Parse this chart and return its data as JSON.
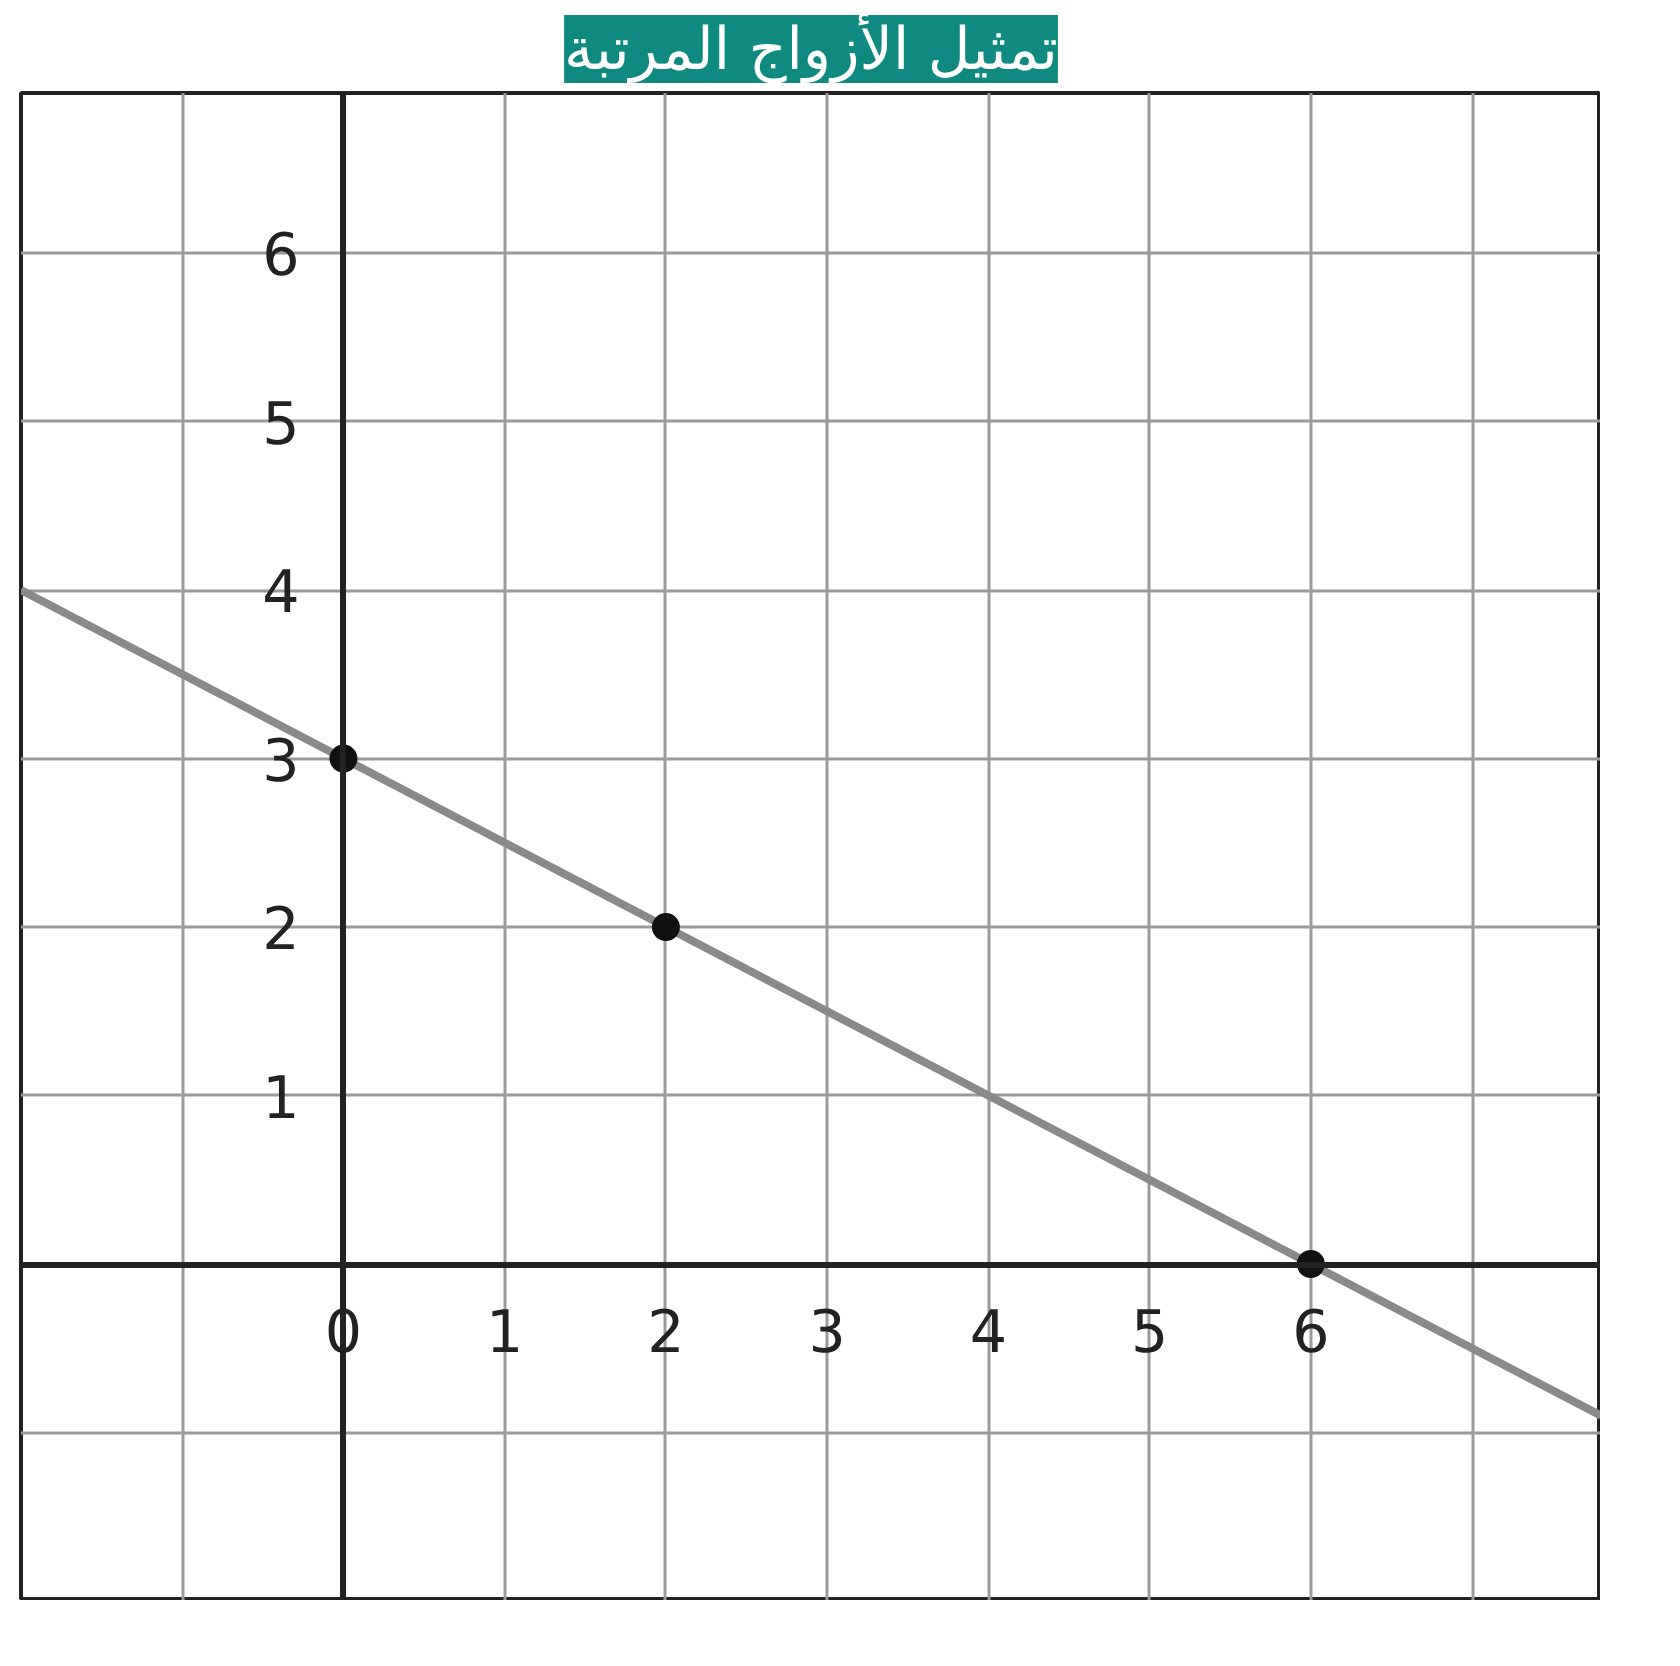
{
  "chart_data": {
    "type": "line",
    "title": "تمثيل الأزواج المرتبة",
    "series": [
      {
        "color": "#8a8a8a",
        "x": [
          -2,
          7.8
        ],
        "values": [
          4,
          -0.9
        ]
      },
      {
        "type": "scatter",
        "color": "#111111",
        "x": [
          0,
          2,
          6
        ],
        "values": [
          3,
          2,
          0
        ],
        "marker": "circle"
      }
    ],
    "xlim": [
      -2,
      7.8
    ],
    "ylim": [
      -2,
      6.95
    ],
    "xticks": [
      {
        "value": -1,
        "label": null
      },
      0,
      1,
      2,
      3,
      4,
      5,
      6,
      {
        "value": 7,
        "label": null
      }
    ],
    "yticks": [
      {
        "value": -1,
        "label": null
      },
      {
        "value": 0,
        "label": null
      },
      1,
      2,
      3,
      4,
      5,
      6
    ],
    "grid": true
  }
}
